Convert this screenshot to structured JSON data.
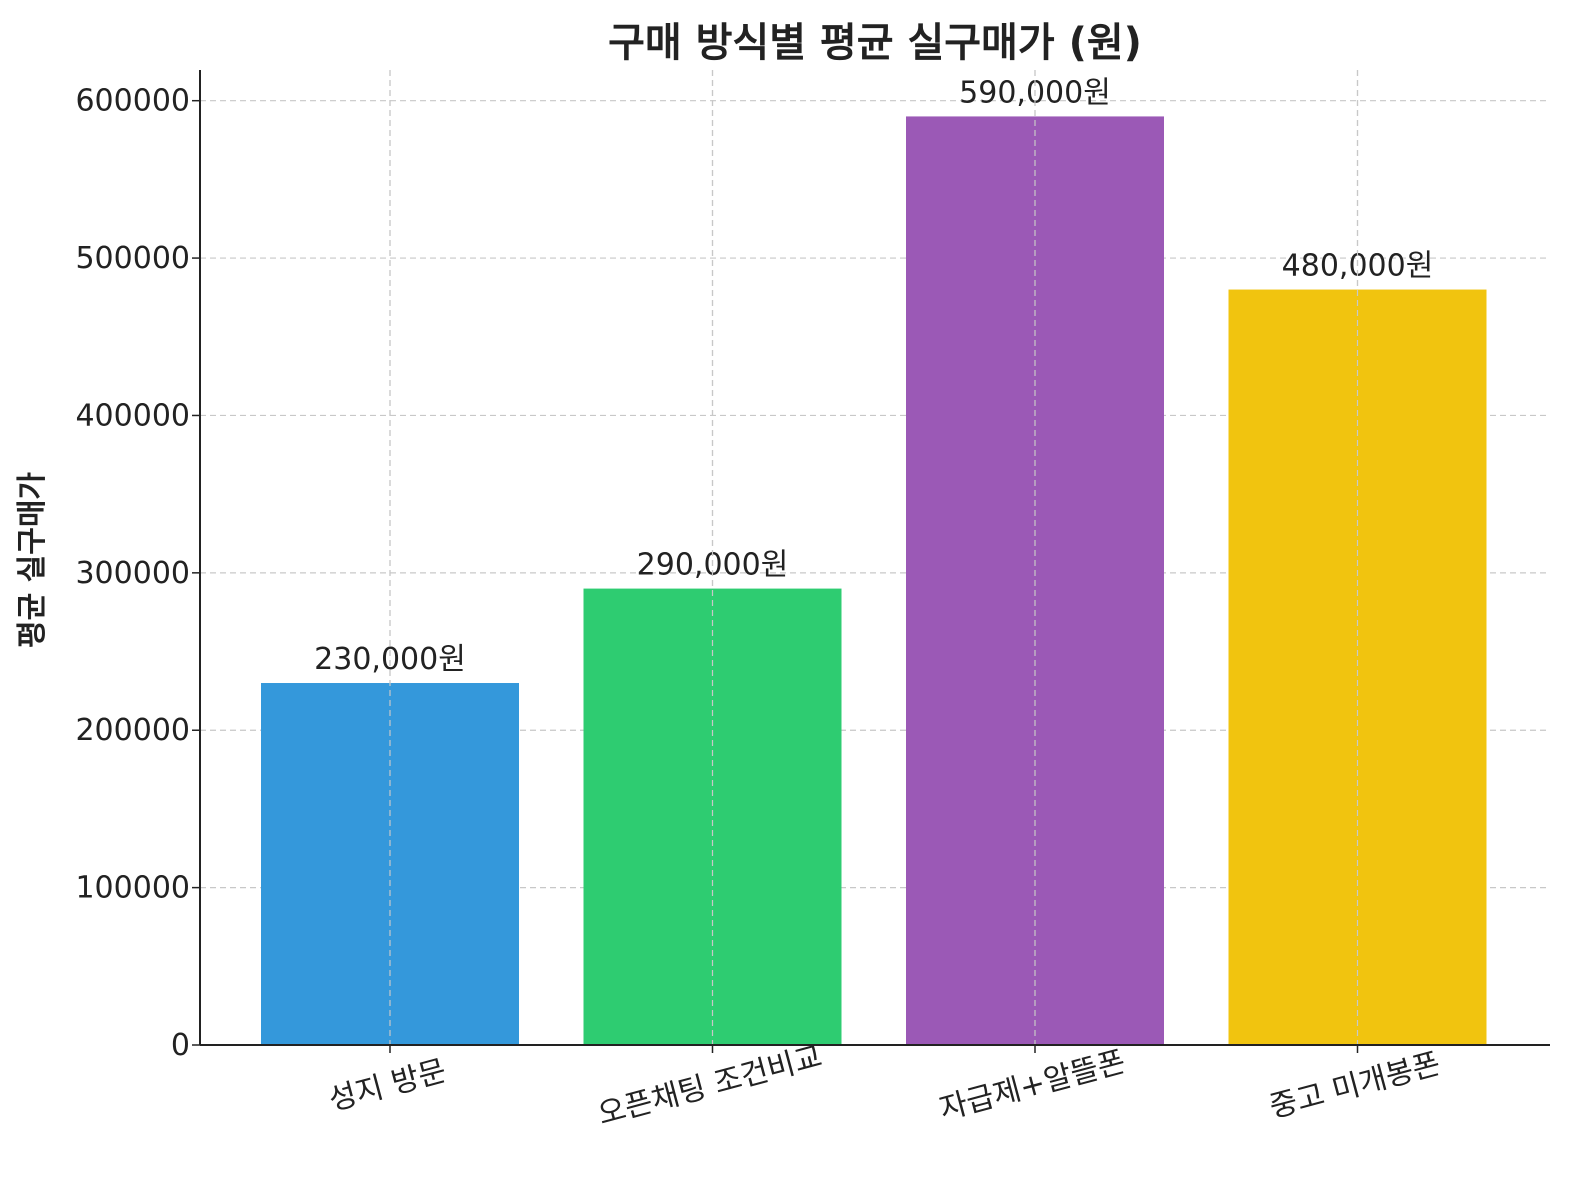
{
  "chart_data": {
    "type": "bar",
    "title": "구매 방식별 평균 실구매가 (원)",
    "xlabel": "",
    "ylabel": "평균 실구매가",
    "categories": [
      "성지 방문",
      "오픈채팅 조건비교",
      "자급제+알뜰폰",
      "중고 미개봉폰"
    ],
    "values": [
      230000,
      290000,
      590000,
      480000
    ],
    "value_labels": [
      "230,000원",
      "290,000원",
      "590,000원",
      "480,000원"
    ],
    "colors": [
      "#3498db",
      "#2ecc71",
      "#9b59b6",
      "#f1c40f"
    ],
    "yticks": [
      0,
      100000,
      200000,
      300000,
      400000,
      500000,
      600000
    ],
    "ytick_labels": [
      "0",
      "100000",
      "200000",
      "300000",
      "400000",
      "500000",
      "600000"
    ],
    "ylim": [
      0,
      619500
    ],
    "grid": true,
    "grid_style": "dashed",
    "legend": false,
    "xtick_rotation": 15
  }
}
